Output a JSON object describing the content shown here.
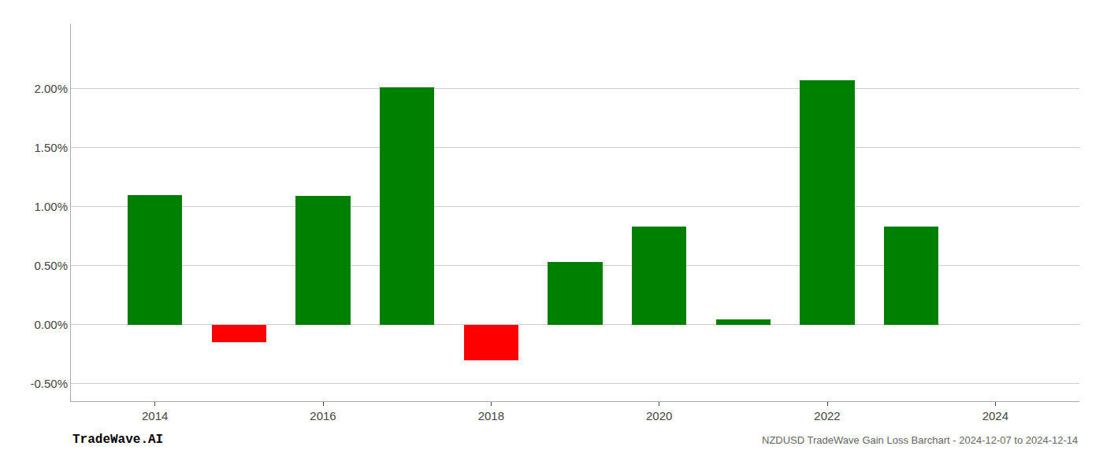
{
  "chart_data": {
    "type": "bar",
    "title": "NZDUSD TradeWave Gain Loss Barchart - 2024-12-07 to 2024-12-14",
    "annotations": [
      "TradeWave.AI"
    ],
    "x": [
      2014,
      2015,
      2016,
      2017,
      2018,
      2019,
      2020,
      2021,
      2022,
      2023
    ],
    "values": [
      0.011,
      -0.0015,
      0.0109,
      0.0201,
      -0.003,
      0.0053,
      0.0083,
      0.00045,
      0.0207,
      0.0083
    ],
    "colors": [
      "#008000",
      "#ff0000",
      "#008000",
      "#008000",
      "#ff0000",
      "#008000",
      "#008000",
      "#008000",
      "#008000",
      "#008000"
    ],
    "xlim": [
      2013.0,
      2025.0
    ],
    "xticks": [
      2014,
      2016,
      2018,
      2020,
      2022,
      2024
    ],
    "ylim": [
      -0.0065,
      0.0255
    ],
    "yticks": [
      {
        "value": -0.005,
        "label": "-0.50%"
      },
      {
        "value": 0.0,
        "label": "0.00%"
      },
      {
        "value": 0.005,
        "label": "0.50%"
      },
      {
        "value": 0.01,
        "label": "1.00%"
      },
      {
        "value": 0.015,
        "label": "1.50%"
      },
      {
        "value": 0.02,
        "label": "2.00%"
      }
    ],
    "grid": true
  }
}
